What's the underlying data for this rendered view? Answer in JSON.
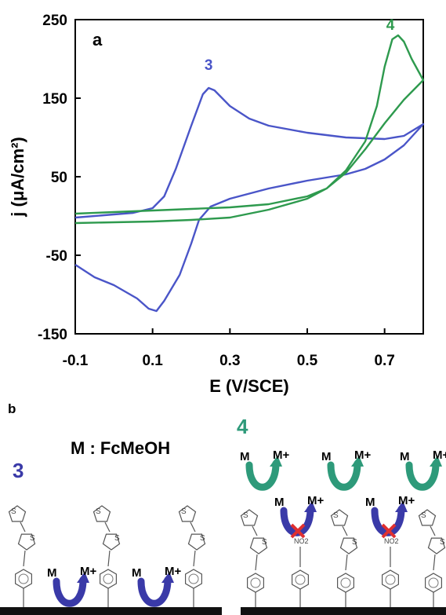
{
  "chart_data": {
    "type": "line",
    "panel_label": "a",
    "xlabel": "E (V/SCE)",
    "ylabel": "j (μA/cm²)",
    "xlim": [
      -0.1,
      0.8
    ],
    "ylim": [
      -150,
      250
    ],
    "x_ticks": [
      "-0.1",
      "0.1",
      "0.3",
      "0.5",
      "0.7"
    ],
    "x_tick_values": [
      -0.1,
      0.1,
      0.3,
      0.5,
      0.7
    ],
    "y_ticks": [
      "250",
      "150",
      "50",
      "-50",
      "-150"
    ],
    "y_tick_values": [
      250,
      150,
      50,
      -50,
      -150
    ],
    "grid": false,
    "series": [
      {
        "name": "3",
        "color": "#4a55c8",
        "points": [
          [
            -0.1,
            -2
          ],
          [
            0.0,
            2
          ],
          [
            0.05,
            4
          ],
          [
            0.1,
            10
          ],
          [
            0.13,
            25
          ],
          [
            0.16,
            60
          ],
          [
            0.2,
            115
          ],
          [
            0.23,
            155
          ],
          [
            0.245,
            163
          ],
          [
            0.26,
            160
          ],
          [
            0.3,
            140
          ],
          [
            0.35,
            124
          ],
          [
            0.4,
            115
          ],
          [
            0.5,
            106
          ],
          [
            0.6,
            100
          ],
          [
            0.7,
            98
          ],
          [
            0.75,
            102
          ],
          [
            0.8,
            117
          ],
          [
            0.75,
            90
          ],
          [
            0.7,
            72
          ],
          [
            0.65,
            60
          ],
          [
            0.6,
            53
          ],
          [
            0.5,
            45
          ],
          [
            0.4,
            35
          ],
          [
            0.3,
            22
          ],
          [
            0.25,
            12
          ],
          [
            0.22,
            -5
          ],
          [
            0.2,
            -35
          ],
          [
            0.17,
            -75
          ],
          [
            0.13,
            -108
          ],
          [
            0.11,
            -121
          ],
          [
            0.09,
            -118
          ],
          [
            0.06,
            -105
          ],
          [
            0.0,
            -88
          ],
          [
            -0.05,
            -78
          ],
          [
            -0.1,
            -62
          ]
        ]
      },
      {
        "name": "4",
        "color": "#2e9a4e",
        "points": [
          [
            -0.1,
            -9
          ],
          [
            0.0,
            -8
          ],
          [
            0.1,
            -7
          ],
          [
            0.2,
            -5
          ],
          [
            0.3,
            -2
          ],
          [
            0.4,
            8
          ],
          [
            0.5,
            22
          ],
          [
            0.55,
            35
          ],
          [
            0.6,
            58
          ],
          [
            0.65,
            95
          ],
          [
            0.68,
            140
          ],
          [
            0.7,
            190
          ],
          [
            0.72,
            225
          ],
          [
            0.735,
            230
          ],
          [
            0.75,
            222
          ],
          [
            0.77,
            200
          ],
          [
            0.8,
            173
          ],
          [
            0.75,
            148
          ],
          [
            0.7,
            118
          ],
          [
            0.65,
            85
          ],
          [
            0.6,
            55
          ],
          [
            0.55,
            35
          ],
          [
            0.5,
            25
          ],
          [
            0.4,
            15
          ],
          [
            0.3,
            11
          ],
          [
            0.2,
            9
          ],
          [
            0.1,
            7
          ],
          [
            0.0,
            5
          ],
          [
            -0.1,
            3
          ]
        ]
      }
    ],
    "annotations": [
      {
        "text": "3",
        "x": 0.245,
        "y": 186,
        "color": "#4a55c8"
      },
      {
        "text": "4",
        "x": 0.715,
        "y": 237,
        "color": "#2e9a4e"
      }
    ]
  },
  "scheme": {
    "panel_label": "b",
    "mediator_text": "M : FcMeOH",
    "left_label": "3",
    "right_label": "4",
    "reactant": "M",
    "product": "M+",
    "ring_atom": "S",
    "blocking_group": "NO2",
    "left_color": "#3a3aa8",
    "right_color": "#2e9a7a",
    "blocked_mark_color": "#e03030"
  }
}
